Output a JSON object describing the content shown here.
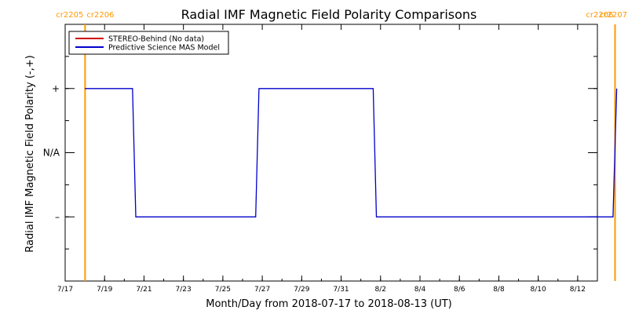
{
  "chart_data": {
    "type": "line",
    "title": "Radial IMF Magnetic Field Polarity Comparisons",
    "xlabel": "Month/Day from 2018-07-17 to 2018-08-13 (UT)",
    "ylabel": "Radial IMF Magnetic Field Polarity (-,+)",
    "x_range": [
      "2018-07-17",
      "2018-08-13"
    ],
    "ylim": [
      -2,
      2
    ],
    "x_ticks": [
      {
        "date": "2018-07-17",
        "label": "7/17"
      },
      {
        "date": "2018-07-19",
        "label": "7/19"
      },
      {
        "date": "2018-07-21",
        "label": "7/21"
      },
      {
        "date": "2018-07-23",
        "label": "7/23"
      },
      {
        "date": "2018-07-25",
        "label": "7/25"
      },
      {
        "date": "2018-07-27",
        "label": "7/27"
      },
      {
        "date": "2018-07-29",
        "label": "7/29"
      },
      {
        "date": "2018-07-31",
        "label": "7/31"
      },
      {
        "date": "2018-08-02",
        "label": "8/2"
      },
      {
        "date": "2018-08-04",
        "label": "8/4"
      },
      {
        "date": "2018-08-06",
        "label": "8/6"
      },
      {
        "date": "2018-08-08",
        "label": "8/8"
      },
      {
        "date": "2018-08-10",
        "label": "8/10"
      },
      {
        "date": "2018-08-12",
        "label": "8/12"
      }
    ],
    "y_ticks": [
      {
        "value": 1,
        "label": "+"
      },
      {
        "value": 0,
        "label": "N/A"
      },
      {
        "value": -1,
        "label": "–"
      }
    ],
    "legend": {
      "placement": "top-left",
      "entries": [
        {
          "name": "STEREO-Behind (No data)",
          "color": "#cc0000"
        },
        {
          "name": "Predictive Science MAS Model",
          "color": "#0000cc"
        }
      ]
    },
    "carrington_markers": [
      {
        "date": "2018-07-18T00:15",
        "label_left": "cr2205",
        "label_right": "cr2206",
        "color": "#ff9900"
      },
      {
        "date": "2018-08-13T21:30",
        "label_left": "cr2206",
        "label_right": "cr2207",
        "color": "#ff9900"
      }
    ],
    "series": [
      {
        "name": "Predictive Science MAS Model",
        "color": "#0000cc",
        "points": [
          {
            "x": "2018-07-18T00:00",
            "y": 1
          },
          {
            "x": "2018-07-20T10:00",
            "y": 1
          },
          {
            "x": "2018-07-20T14:00",
            "y": -1
          },
          {
            "x": "2018-07-26T16:00",
            "y": -1
          },
          {
            "x": "2018-07-26T20:00",
            "y": 1
          },
          {
            "x": "2018-08-01T15:00",
            "y": 1
          },
          {
            "x": "2018-08-01T19:00",
            "y": -1
          },
          {
            "x": "2018-08-13T19:00",
            "y": -1
          },
          {
            "x": "2018-08-13T23:30",
            "y": 1
          }
        ]
      }
    ]
  }
}
